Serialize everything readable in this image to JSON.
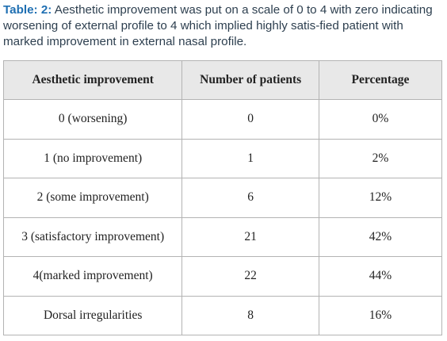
{
  "caption": {
    "label": "Table: 2:",
    "text": " Aesthetic improvement was put on a scale of 0 to 4 with zero indicating worsening of external profile to 4 which implied highly satis-fied patient with marked improvement in external nasal profile."
  },
  "table": {
    "headers": [
      "Aesthetic improvement",
      "Number of patients",
      "Percentage"
    ],
    "rows": [
      [
        "0 (worsening)",
        "0",
        "0%"
      ],
      [
        "1 (no improvement)",
        "1",
        "2%"
      ],
      [
        "2 (some improvement)",
        "6",
        "12%"
      ],
      [
        "3 (satisfactory improvement)",
        "21",
        "42%"
      ],
      [
        "4(marked improvement)",
        "22",
        "44%"
      ],
      [
        "Dorsal irregularities",
        "8",
        "16%"
      ]
    ]
  },
  "colors": {
    "caption_label": "#1f6fb2",
    "caption_text": "#2d3f4f",
    "header_bg": "#e8e8e8",
    "border": "#b3b3b3"
  }
}
